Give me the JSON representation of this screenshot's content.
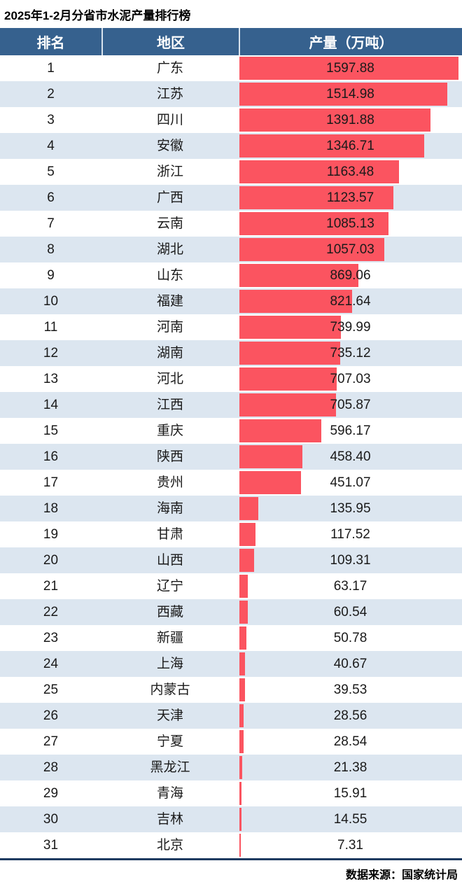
{
  "title": "2025年1-2月分省市水泥产量排行榜",
  "table": {
    "columns": [
      "排名",
      "地区",
      "产量（万吨）"
    ]
  },
  "footer": {
    "source": "数据来源：国家统计局"
  },
  "colors": {
    "header_bg": "#36618e",
    "stripe_bg": "#dce6f0",
    "bar_color": "#fb5460",
    "rule_color": "#1e3a60"
  },
  "chart_data": {
    "type": "bar",
    "orientation": "horizontal",
    "title": "2025年1-2月分省市水泥产量排行榜",
    "xlabel": "产量（万吨）",
    "ylabel": "地区",
    "legend": false,
    "grid": false,
    "scale_max": 1625,
    "ranks": [
      1,
      2,
      3,
      4,
      5,
      6,
      7,
      8,
      9,
      10,
      11,
      12,
      13,
      14,
      15,
      16,
      17,
      18,
      19,
      20,
      21,
      22,
      23,
      24,
      25,
      26,
      27,
      28,
      29,
      30,
      31
    ],
    "categories": [
      "广东",
      "江苏",
      "四川",
      "安徽",
      "浙江",
      "广西",
      "云南",
      "湖北",
      "山东",
      "福建",
      "河南",
      "湖南",
      "河北",
      "江西",
      "重庆",
      "陕西",
      "贵州",
      "海南",
      "甘肃",
      "山西",
      "辽宁",
      "西藏",
      "新疆",
      "上海",
      "内蒙古",
      "天津",
      "宁夏",
      "黑龙江",
      "青海",
      "吉林",
      "北京"
    ],
    "values": [
      1597.88,
      1514.98,
      1391.88,
      1346.71,
      1163.48,
      1123.57,
      1085.13,
      1057.03,
      869.06,
      821.64,
      739.99,
      735.12,
      707.03,
      705.87,
      596.17,
      458.4,
      451.07,
      135.95,
      117.52,
      109.31,
      63.17,
      60.54,
      50.78,
      40.67,
      39.53,
      28.56,
      28.54,
      21.38,
      15.91,
      14.55,
      7.31
    ],
    "value_labels": [
      "1597.88",
      "1514.98",
      "1391.88",
      "1346.71",
      "1163.48",
      "1123.57",
      "1085.13",
      "1057.03",
      "869.06",
      "821.64",
      "739.99",
      "735.12",
      "707.03",
      "705.87",
      "596.17",
      "458.40",
      "451.07",
      "135.95",
      "117.52",
      "109.31",
      "63.17",
      "60.54",
      "50.78",
      "40.67",
      "39.53",
      "28.56",
      "28.54",
      "21.38",
      "15.91",
      "14.55",
      "7.31"
    ],
    "source": "数据来源：国家统计局"
  }
}
